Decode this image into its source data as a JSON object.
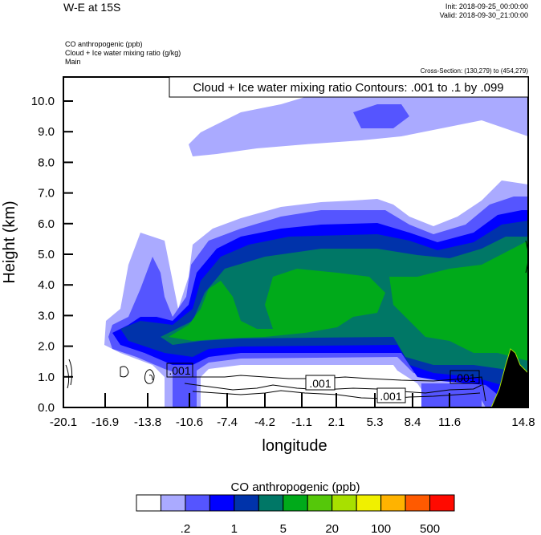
{
  "header": {
    "title": "W-E at 15S",
    "init": "Init: 2018-09-25_00:00:00",
    "valid": "Valid: 2018-09-30_21:00:00",
    "fields": [
      "CO anthropogenic   (ppb)",
      "Cloud + Ice water mixing ratio   (g/kg)",
      "Main"
    ],
    "cross_section": "Cross-Section: (130,279) to (454,279)"
  },
  "chart_data": {
    "type": "heatmap",
    "title": "Cloud + Ice water mixing ratio Contours: .001 to .1 by .099",
    "xlabel": "longitude",
    "ylabel": "Height (km)",
    "x_ticks": [
      "-20.1",
      "-16.9",
      "-13.8",
      "-10.6",
      "-7.4",
      "-4.2",
      "-1.1",
      "2.1",
      "5.3",
      "8.4",
      "11.6",
      "14.8"
    ],
    "y_ticks": [
      "0.0",
      "1.0",
      "2.0",
      "3.0",
      "4.0",
      "5.0",
      "6.0",
      "7.0",
      "8.0",
      "9.0",
      "10.0"
    ],
    "xlim": [
      -20.1,
      14.8
    ],
    "ylim": [
      0,
      10.8
    ],
    "contour_labels": [
      ".001",
      ".001",
      ".001",
      ".001"
    ],
    "colorbar": {
      "title": "CO anthropogenic  (ppb)",
      "colors": [
        "#ffffff",
        "#aaaaff",
        "#5555ff",
        "#0000ff",
        "#0033aa",
        "#007766",
        "#00aa1a",
        "#55c80a",
        "#a8e000",
        "#f0f000",
        "#ffb300",
        "#ff5a00",
        "#ff0a00"
      ],
      "labels": [
        ".2",
        "1",
        "5",
        "20",
        "100",
        "500"
      ]
    }
  }
}
